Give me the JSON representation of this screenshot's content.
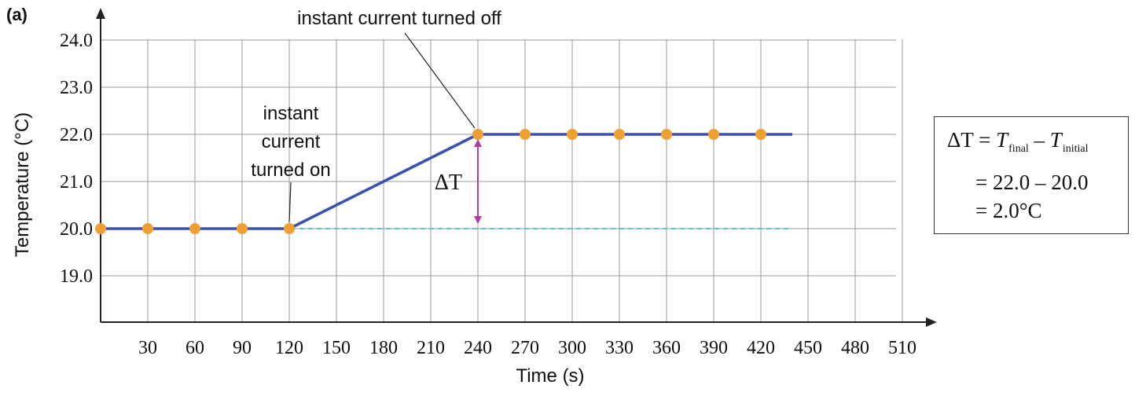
{
  "chart_data": {
    "type": "line",
    "panel_label": "(a)",
    "xlabel": "Time (s)",
    "ylabel": "Temperature (°C)",
    "xlim": [
      0,
      540
    ],
    "ylim": [
      18.0,
      24.0
    ],
    "x_ticks": [
      30,
      60,
      90,
      120,
      150,
      180,
      210,
      240,
      270,
      300,
      330,
      360,
      390,
      420,
      450,
      480,
      510
    ],
    "x_tick_labels": [
      "30",
      "60",
      "90",
      "120",
      "150",
      "180",
      "210",
      "240",
      "270",
      "300",
      "330",
      "360",
      "390",
      "420",
      "450",
      "480",
      "510"
    ],
    "y_ticks": [
      19.0,
      20.0,
      21.0,
      22.0,
      23.0,
      24.0
    ],
    "y_tick_labels": [
      "19.0",
      "20.0",
      "21.0",
      "22.0",
      "23.0",
      "24.0"
    ],
    "grid": true,
    "series": [
      {
        "line": [
          [
            0,
            20.0
          ],
          [
            120,
            20.0
          ],
          [
            240,
            22.0
          ],
          [
            440,
            22.0
          ]
        ],
        "points": [
          [
            0,
            20.0
          ],
          [
            30,
            20.0
          ],
          [
            60,
            20.0
          ],
          [
            90,
            20.0
          ],
          [
            120,
            20.0
          ],
          [
            240,
            22.0
          ],
          [
            270,
            22.0
          ],
          [
            300,
            22.0
          ],
          [
            330,
            22.0
          ],
          [
            360,
            22.0
          ],
          [
            390,
            22.0
          ],
          [
            420,
            22.0
          ]
        ]
      }
    ],
    "baseline": {
      "y": 20.0,
      "x_range": [
        0,
        440
      ]
    },
    "delta_arrow": {
      "x": 240,
      "from": 20.0,
      "to": 22.0,
      "label": "ΔT"
    },
    "annotations": [
      {
        "text": [
          "instant",
          "current",
          "turned on"
        ],
        "target": [
          120,
          20.0
        ]
      },
      {
        "text": [
          "instant current turned off"
        ],
        "target": [
          240,
          22.0
        ]
      }
    ],
    "colors": {
      "line": "#3a4fb0",
      "points": "#f0a030",
      "baseline": "#5fc4cf",
      "delta": "#b03aa6",
      "grid": "#9a9a9a",
      "axis": "#222222"
    }
  },
  "formula": {
    "line1": {
      "delta": "ΔT",
      "eq": " = ",
      "t1": "T",
      "sub1": "final",
      "minus": " – ",
      "t2": "T",
      "sub2": "initial"
    },
    "line2": "= 22.0 – 20.0",
    "line3": "= 2.0°C"
  }
}
